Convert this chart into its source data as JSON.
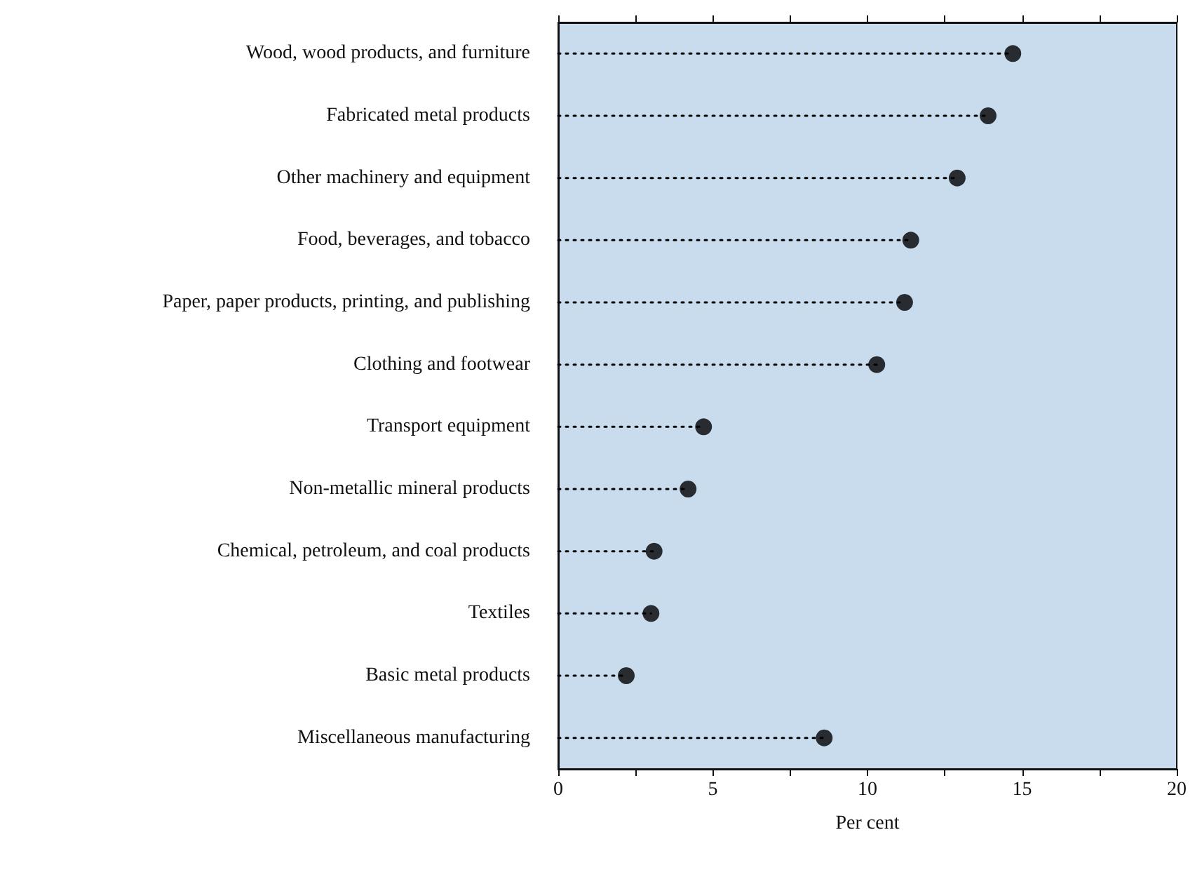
{
  "chart_data": {
    "type": "lollipop",
    "orientation": "horizontal",
    "xlabel": "Per cent",
    "categories": [
      "Wood, wood products, and furniture",
      "Fabricated metal products",
      "Other machinery and equipment",
      "Food, beverages, and tobacco",
      "Paper, paper products, printing, and publishing",
      "Clothing and footwear",
      "Transport equipment",
      "Non-metallic mineral products",
      "Chemical, petroleum, and coal products",
      "Textiles",
      "Basic metal products",
      "Miscellaneous manufacturing"
    ],
    "values": [
      14.7,
      13.9,
      12.9,
      11.4,
      11.2,
      10.3,
      4.7,
      4.2,
      3.1,
      3.0,
      2.2,
      8.6
    ],
    "color": "#000000",
    "marker": "circle",
    "line_style": "dotted",
    "grid": false,
    "xlim": [
      0,
      20
    ],
    "xticks": [
      0,
      {
        "value": 2.5,
        "label": null
      },
      5,
      {
        "value": 7.5,
        "label": null
      },
      10,
      {
        "value": 12.5,
        "label": null
      },
      15,
      {
        "value": 17.5,
        "label": null
      },
      20
    ]
  }
}
